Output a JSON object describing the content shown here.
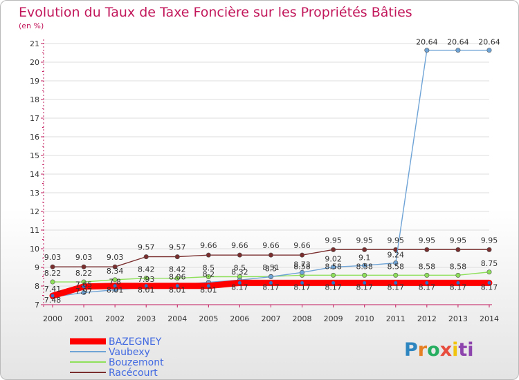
{
  "chart_data": {
    "type": "line",
    "title": "Evolution du Taux de Taxe Foncière sur les Propriétés Bâties",
    "ylabel": "(en %)",
    "xlabel": "",
    "categories": [
      "2000",
      "2001",
      "2002",
      "2003",
      "2004",
      "2005",
      "2006",
      "2007",
      "2008",
      "2009",
      "2010",
      "2011",
      "2012",
      "2013",
      "2014"
    ],
    "ylim": [
      7,
      21
    ],
    "yticks": [
      "7",
      "8",
      "9",
      "10",
      "11",
      "12",
      "13",
      "14",
      "15",
      "16",
      "17",
      "18",
      "19",
      "20",
      "21"
    ],
    "legend_position": "bottom-left",
    "series": [
      {
        "name": "BAZEGNEY",
        "color": "#ff0000",
        "values": [
          7.48,
          7.97,
          8.01,
          8.01,
          8.01,
          8.01,
          8.17,
          8.17,
          8.17,
          8.17,
          8.17,
          8.17,
          8.17,
          8.17,
          8.17
        ],
        "labels": [
          "7.48",
          "7.97",
          "8.01",
          "8.01",
          "8.01",
          "8.01",
          "8.17",
          "8.17",
          "8.17",
          "8.17",
          "8.17",
          "8.17",
          "8.17",
          "8.17",
          "8.17"
        ]
      },
      {
        "name": "Vaubexy",
        "color": "#6ea3d6",
        "values": [
          7.41,
          7.65,
          7.8,
          7.93,
          8.06,
          8.2,
          8.32,
          8.5,
          8.73,
          9.02,
          9.1,
          9.24,
          20.64,
          20.64,
          20.64
        ],
        "labels": [
          "7.41",
          "7.65",
          "7.8",
          "7.93",
          "8.06",
          "8.2",
          "8.32",
          "8.5",
          "8.73",
          "9.02",
          "9.1",
          "9.24",
          "20.64",
          "20.64",
          "20.64"
        ]
      },
      {
        "name": "Bouzemont",
        "color": "#8ee05a",
        "values": [
          8.22,
          8.22,
          8.34,
          8.42,
          8.42,
          8.5,
          8.5,
          8.51,
          8.58,
          8.58,
          8.58,
          8.58,
          8.58,
          8.58,
          8.75
        ],
        "labels": [
          "8.22",
          "8.22",
          "8.34",
          "8.42",
          "8.42",
          "8.5",
          "8.5",
          "8.51",
          "8.58",
          "8.58",
          "8.58",
          "8.58",
          "8.58",
          "8.58",
          "8.75"
        ]
      },
      {
        "name": "Racécourt",
        "color": "#7a2e2e",
        "values": [
          9.03,
          9.03,
          9.03,
          9.57,
          9.57,
          9.66,
          9.66,
          9.66,
          9.66,
          9.95,
          9.95,
          9.95,
          9.95,
          9.95,
          9.95
        ],
        "labels": [
          "9.03",
          "9.03",
          "9.03",
          "9.57",
          "9.57",
          "9.66",
          "9.66",
          "9.66",
          "9.66",
          "9.95",
          "9.95",
          "9.95",
          "9.95",
          "9.95",
          "9.95"
        ]
      }
    ]
  },
  "brand": {
    "letters": [
      "P",
      "r",
      "o",
      "x",
      "i",
      "ti"
    ]
  },
  "colors": {
    "title": "#c2185b",
    "axis": "#c2185b",
    "legend_text": "#4169e1",
    "grid": "#dddddd"
  }
}
